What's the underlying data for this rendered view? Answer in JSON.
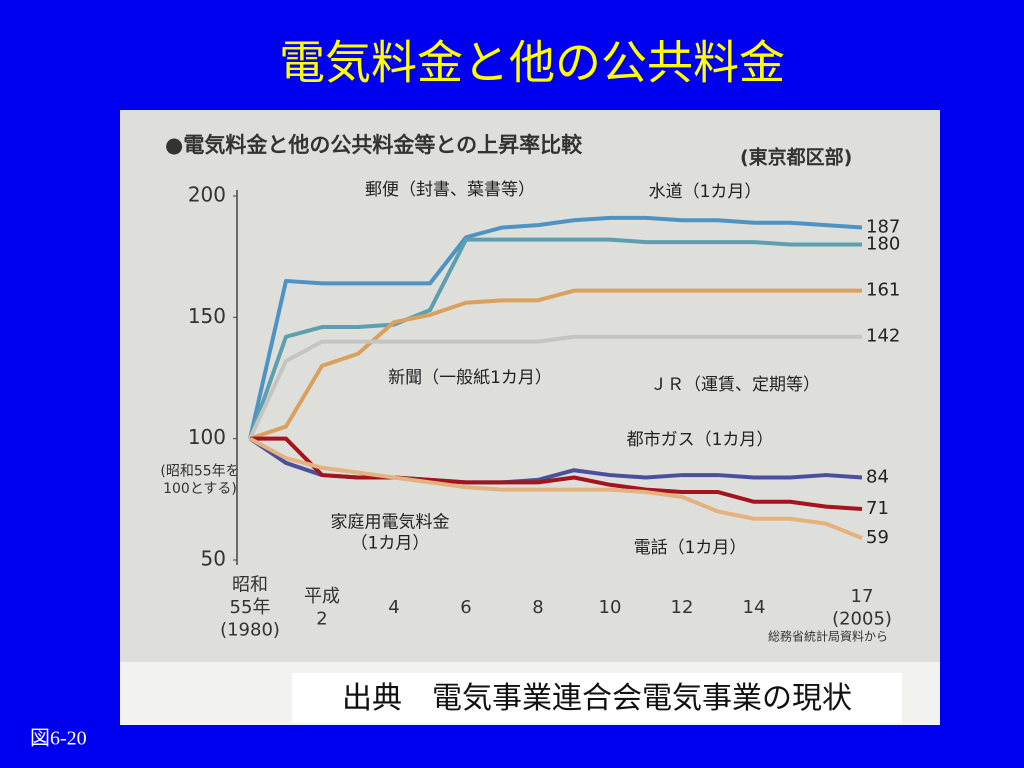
{
  "slide_title": "電気料金と他の公共料金",
  "figure_label": "図6-20",
  "caption": "出典　電気事業連合会電気事業の現状",
  "chart_data": {
    "type": "line",
    "title": "●電気料金と他の公共料金等との上昇率比較",
    "subtitle": "(東京都区部)",
    "y_note": "(昭和55年を\n100とする)",
    "source": "総務省統計局資料から",
    "categories": [
      "昭和\n55年\n(1980)",
      null,
      "平成\n2",
      null,
      "4",
      null,
      "6",
      null,
      "8",
      null,
      "10",
      null,
      "12",
      null,
      "14",
      null,
      null,
      "17\n(2005)"
    ],
    "ylim": [
      50,
      200
    ],
    "yticks": [
      50,
      100,
      150,
      200
    ],
    "series": [
      {
        "name": "水道（1カ月）",
        "color": "#4f93c4",
        "values": [
          100,
          165,
          164,
          164,
          164,
          164,
          183,
          187,
          188,
          190,
          191,
          191,
          190,
          190,
          189,
          189,
          188,
          187
        ]
      },
      {
        "name": "郵便（封書、葉書等）",
        "color": "#5c9fae",
        "values": [
          100,
          142,
          146,
          146,
          147,
          153,
          182,
          182,
          182,
          182,
          182,
          181,
          181,
          181,
          181,
          180,
          180,
          180
        ]
      },
      {
        "name": "新聞（一般紙1カ月）",
        "color": "#d9a05e",
        "values": [
          100,
          105,
          130,
          135,
          148,
          151,
          156,
          157,
          157,
          161,
          161,
          161,
          161,
          161,
          161,
          161,
          161,
          161
        ]
      },
      {
        "name": "ＪＲ（運賃、定期等）",
        "color": "#c4c4c0",
        "values": [
          100,
          132,
          140,
          140,
          140,
          140,
          140,
          140,
          140,
          142,
          142,
          142,
          142,
          142,
          142,
          142,
          142,
          142
        ]
      },
      {
        "name": "都市ガス（1カ月）",
        "color": "#4a4f9e",
        "values": [
          100,
          90,
          85,
          84,
          84,
          83,
          82,
          82,
          83,
          87,
          85,
          84,
          85,
          85,
          84,
          84,
          85,
          84
        ]
      },
      {
        "name": "家庭用電気料金\n（1カ月）",
        "color": "#a3141f",
        "values": [
          100,
          100,
          85,
          84,
          84,
          83,
          82,
          82,
          82,
          84,
          81,
          79,
          78,
          78,
          74,
          74,
          72,
          71
        ]
      },
      {
        "name": "電話（1カ月）",
        "color": "#e3b27e",
        "values": [
          100,
          92,
          88,
          86,
          84,
          82,
          80,
          79,
          79,
          79,
          79,
          78,
          76,
          70,
          67,
          67,
          65,
          59
        ]
      }
    ]
  }
}
